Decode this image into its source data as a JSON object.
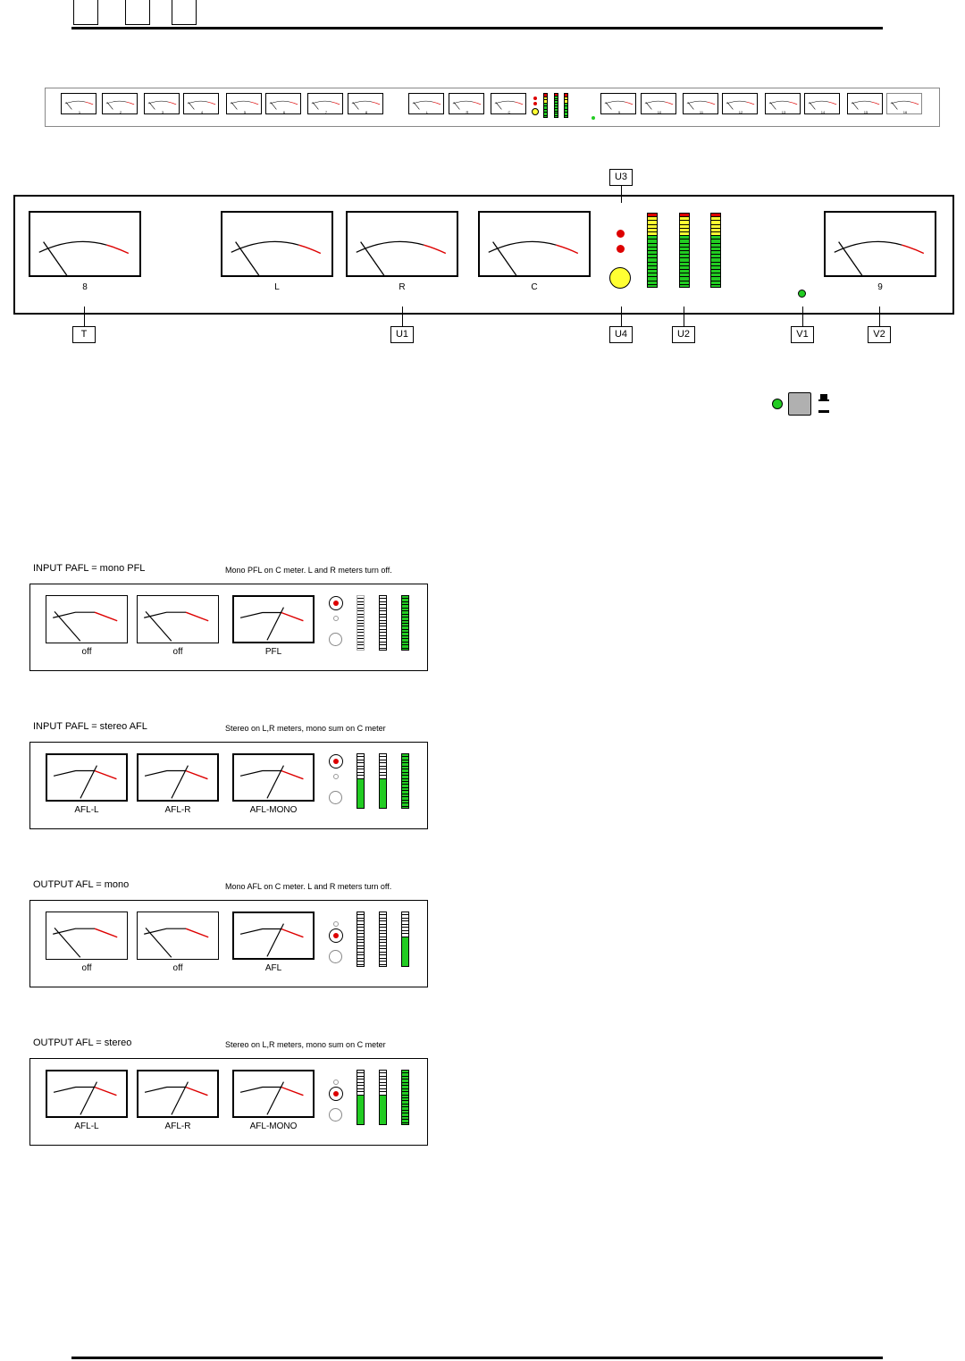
{
  "top_meter_labels": [
    "1",
    "2",
    "3",
    "4",
    "5",
    "6",
    "7",
    "8",
    "L",
    "R",
    "C",
    "9",
    "10",
    "11",
    "12",
    "13",
    "14",
    "15",
    "16"
  ],
  "detail_panel": {
    "meters": [
      {
        "label": "8"
      },
      {
        "label": "L"
      },
      {
        "label": "R"
      },
      {
        "label": "C"
      },
      {
        "label": "9"
      }
    ],
    "callouts": {
      "t": "T",
      "u1": "U1",
      "u2": "U2",
      "u3": "U3",
      "u4": "U4",
      "v1": "V1",
      "v2": "V2"
    }
  },
  "modes": [
    {
      "title": "INPUT PAFL  =  mono PFL",
      "description": "Mono PFL on C meter.  L and R meters turn off.",
      "meter_labels": [
        "off",
        "off",
        "PFL"
      ]
    },
    {
      "title": "INPUT PAFL  =  stereo AFL",
      "description": "Stereo on L,R meters, mono sum on C meter",
      "meter_labels": [
        "AFL-L",
        "AFL-R",
        "AFL-MONO"
      ]
    },
    {
      "title": "OUTPUT AFL  =  mono",
      "description": "Mono AFL on C meter.  L and R meters turn off.",
      "meter_labels": [
        "off",
        "off",
        "AFL"
      ]
    },
    {
      "title": "OUTPUT AFL  =  stereo",
      "description": "Stereo on L,R meters, mono sum on C meter",
      "meter_labels": [
        "AFL-L",
        "AFL-R",
        "AFL-MONO"
      ]
    }
  ],
  "colors": {
    "green": "#22cc22",
    "yellow": "#ffff33",
    "red": "#dd0000",
    "button_grey": "#b0b0b0"
  }
}
